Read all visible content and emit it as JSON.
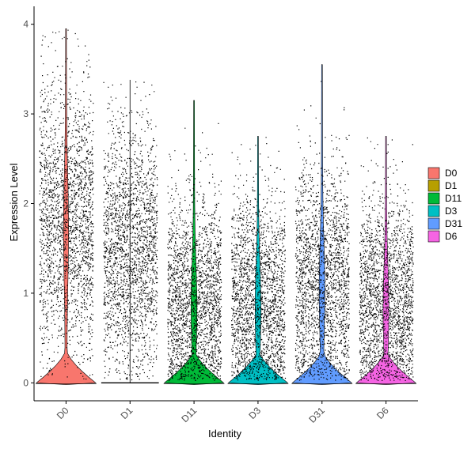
{
  "chart_data": {
    "type": "violin",
    "xlabel": "Identity",
    "ylabel": "Expression Level",
    "categories": [
      "D0",
      "D1",
      "D11",
      "D3",
      "D31",
      "D6"
    ],
    "colors": [
      "#F8766D",
      "#B79F00",
      "#00BA38",
      "#00BFC4",
      "#619CFF",
      "#F564E3"
    ],
    "ylim": [
      -0.2,
      4.2
    ],
    "yticks": [
      "0",
      "1",
      "2",
      "3",
      "4"
    ],
    "series": [
      {
        "name": "D0",
        "max": 3.95,
        "points_center": 1.8,
        "points_spread": 0.75,
        "violin_base_halfwidth": 0.45
      },
      {
        "name": "D1",
        "max": 3.38,
        "points_center": 1.5,
        "points_spread": 0.7,
        "violin_base_halfwidth": 0.45
      },
      {
        "name": "D11",
        "max": 3.15,
        "points_center": 0.9,
        "points_spread": 0.6,
        "violin_base_halfwidth": 0.45
      },
      {
        "name": "D3",
        "max": 2.75,
        "points_center": 0.9,
        "points_spread": 0.6,
        "violin_base_halfwidth": 0.45
      },
      {
        "name": "D31",
        "max": 3.55,
        "points_center": 1.1,
        "points_spread": 0.65,
        "violin_base_halfwidth": 0.45
      },
      {
        "name": "D6",
        "max": 2.75,
        "points_center": 0.9,
        "points_spread": 0.6,
        "violin_base_halfwidth": 0.45
      }
    ],
    "legend": {
      "position": "right",
      "entries": [
        "D0",
        "D1",
        "D11",
        "D3",
        "D31",
        "D6"
      ]
    },
    "grid": false
  }
}
